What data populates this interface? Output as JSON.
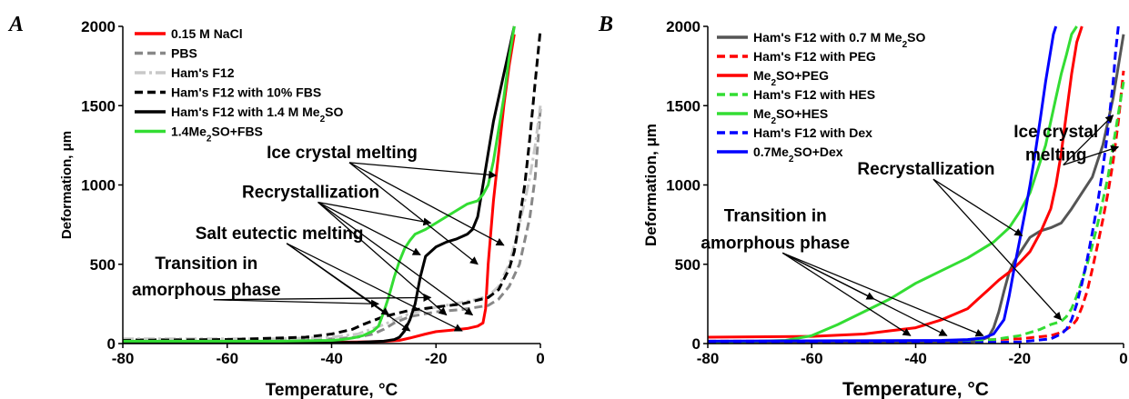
{
  "chart_data": [
    {
      "type": "line",
      "panel": "A",
      "xlabel": "Temperature, °C",
      "ylabel": "Deformation, μm",
      "xlim": [
        -80,
        0
      ],
      "ylim": [
        0,
        2000
      ],
      "xticks": [
        -80,
        -60,
        -40,
        -20,
        0
      ],
      "yticks": [
        0,
        500,
        1000,
        1500,
        2000
      ],
      "legend_position": "top-left",
      "series": [
        {
          "name": "0.15 M NaCl",
          "color": "#ff0000",
          "dash": "solid",
          "x": [
            -80,
            -40,
            -35,
            -30,
            -27,
            -25,
            -22,
            -20,
            -17,
            -14,
            -12,
            -11,
            -10.5,
            -10,
            -9,
            -8,
            -7,
            -6,
            -5
          ],
          "y": [
            8,
            8,
            10,
            14,
            20,
            35,
            60,
            75,
            85,
            95,
            110,
            130,
            220,
            500,
            900,
            1200,
            1500,
            1750,
            1950
          ]
        },
        {
          "name": "PBS",
          "color": "#888888",
          "dash": "dash",
          "x": [
            -80,
            -50,
            -40,
            -35,
            -32,
            -30,
            -28,
            -25,
            -20,
            -15,
            -10,
            -8,
            -6,
            -4,
            -3,
            -2,
            -1,
            0
          ],
          "y": [
            25,
            25,
            30,
            40,
            60,
            90,
            130,
            170,
            200,
            215,
            240,
            280,
            360,
            500,
            650,
            800,
            1050,
            1480
          ]
        },
        {
          "name": "Ham's F12",
          "color": "#c8c8c8",
          "dash": "dashdot",
          "x": [
            -80,
            -50,
            -40,
            -35,
            -30,
            -25,
            -20,
            -15,
            -12,
            -10,
            -8,
            -6,
            -5,
            -4,
            -3,
            -2,
            -1,
            0
          ],
          "y": [
            30,
            30,
            40,
            60,
            120,
            190,
            230,
            260,
            280,
            300,
            360,
            500,
            620,
            750,
            900,
            1050,
            1250,
            1500
          ]
        },
        {
          "name": "Ham's F12 with 10% FBS",
          "color": "#000000",
          "dash": "dash",
          "x": [
            -80,
            -60,
            -45,
            -40,
            -36,
            -34,
            -30,
            -25,
            -20,
            -15,
            -10,
            -8,
            -6,
            -5,
            -4,
            -3,
            -2,
            -1,
            0
          ],
          "y": [
            20,
            25,
            40,
            60,
            90,
            120,
            170,
            210,
            230,
            250,
            290,
            340,
            470,
            580,
            780,
            1000,
            1300,
            1650,
            1980
          ]
        },
        {
          "name": "Ham's F12 with 1.4 M Me₂SO",
          "color": "#000000",
          "dash": "solid",
          "x": [
            -80,
            -40,
            -35,
            -30,
            -28,
            -27,
            -26,
            -25,
            -24,
            -23,
            -22,
            -20,
            -18,
            -16,
            -14,
            -13,
            -12,
            -11,
            -10,
            -9,
            -8,
            -7,
            -6,
            -5
          ],
          "y": [
            5,
            5,
            8,
            15,
            25,
            40,
            80,
            150,
            250,
            420,
            550,
            610,
            640,
            660,
            690,
            720,
            800,
            1000,
            1200,
            1400,
            1550,
            1700,
            1850,
            2000
          ]
        },
        {
          "name": "1.4Me₂SO+FBS",
          "color": "#33dd33",
          "dash": "solid",
          "x": [
            -80,
            -50,
            -40,
            -38,
            -36,
            -34,
            -32,
            -31,
            -30,
            -29,
            -28,
            -27,
            -26,
            -25,
            -24,
            -22,
            -20,
            -18,
            -16,
            -14,
            -12,
            -11,
            -10,
            -9,
            -8,
            -7,
            -6,
            -5
          ],
          "y": [
            15,
            15,
            20,
            25,
            35,
            50,
            80,
            110,
            200,
            300,
            420,
            520,
            600,
            650,
            690,
            720,
            760,
            800,
            840,
            880,
            900,
            940,
            1000,
            1150,
            1350,
            1550,
            1800,
            2000
          ]
        }
      ],
      "annotations": [
        "Ice crystal melting",
        "Recrystallization",
        "Salt eutectic melting",
        "Transition in",
        "amorphous phase"
      ]
    },
    {
      "type": "line",
      "panel": "B",
      "xlabel": "Temperature, °C",
      "ylabel": "Deformation, μm",
      "xlim": [
        -80,
        0
      ],
      "ylim": [
        0,
        2000
      ],
      "xticks": [
        -80,
        -60,
        -40,
        -20,
        0
      ],
      "yticks": [
        0,
        500,
        1000,
        1500,
        2000
      ],
      "legend_position": "top-left",
      "series": [
        {
          "name": "Ham's F12 with 0.7 M Me₂SO",
          "color": "#555555",
          "dash": "solid",
          "x": [
            -80,
            -30,
            -28,
            -26,
            -25,
            -24,
            -23,
            -22,
            -21,
            -20,
            -19,
            -18,
            -16,
            -14,
            -12,
            -10,
            -8,
            -6,
            -5,
            -4,
            -3,
            -2,
            -1,
            0
          ],
          "y": [
            10,
            10,
            15,
            40,
            100,
            200,
            330,
            450,
            520,
            570,
            620,
            670,
            710,
            730,
            760,
            850,
            950,
            1050,
            1150,
            1250,
            1400,
            1550,
            1750,
            1950
          ]
        },
        {
          "name": "Ham's F12 with PEG",
          "color": "#ff0000",
          "dash": "dash",
          "x": [
            -80,
            -40,
            -30,
            -20,
            -14,
            -12,
            -10,
            -9,
            -8,
            -7,
            -6,
            -5,
            -4,
            -3,
            -2,
            -1,
            0
          ],
          "y": [
            15,
            15,
            20,
            30,
            50,
            70,
            110,
            150,
            230,
            330,
            470,
            620,
            780,
            950,
            1150,
            1400,
            1720
          ]
        },
        {
          "name": "Me₂SO+PEG",
          "color": "#ff0000",
          "dash": "solid",
          "x": [
            -80,
            -60,
            -50,
            -45,
            -40,
            -35,
            -30,
            -28,
            -26,
            -24,
            -22,
            -20,
            -18,
            -16,
            -14,
            -13,
            -12,
            -11,
            -10,
            -9,
            -8
          ],
          "y": [
            40,
            45,
            60,
            80,
            100,
            150,
            220,
            280,
            340,
            400,
            450,
            510,
            580,
            700,
            850,
            1000,
            1200,
            1450,
            1700,
            1900,
            2000
          ]
        },
        {
          "name": "Ham's F12 with HES",
          "color": "#33dd33",
          "dash": "dash",
          "x": [
            -80,
            -40,
            -30,
            -25,
            -20,
            -16,
            -14,
            -12,
            -11,
            -10,
            -9,
            -8,
            -7,
            -6,
            -5,
            -4,
            -3,
            -2,
            -1,
            0
          ],
          "y": [
            10,
            10,
            15,
            25,
            50,
            90,
            120,
            140,
            170,
            220,
            300,
            400,
            500,
            620,
            750,
            900,
            1050,
            1250,
            1450,
            1650
          ]
        },
        {
          "name": "Me₂SO+HES",
          "color": "#33dd33",
          "dash": "solid",
          "x": [
            -80,
            -70,
            -65,
            -60,
            -55,
            -50,
            -45,
            -40,
            -35,
            -30,
            -25,
            -22,
            -20,
            -18,
            -17,
            -16,
            -15,
            -14,
            -13,
            -12,
            -11,
            -10,
            -9
          ],
          "y": [
            10,
            15,
            20,
            50,
            120,
            200,
            280,
            380,
            460,
            540,
            640,
            730,
            830,
            950,
            1050,
            1150,
            1250,
            1400,
            1550,
            1700,
            1820,
            1950,
            2000
          ]
        },
        {
          "name": "Ham's F12 with Dex",
          "color": "#0000ff",
          "dash": "dash",
          "x": [
            -80,
            -30,
            -20,
            -14,
            -12,
            -11,
            -10,
            -9,
            -8,
            -7,
            -6,
            -5,
            -4,
            -3,
            -2.5,
            -2,
            -1.5,
            -1
          ],
          "y": [
            5,
            5,
            10,
            30,
            60,
            90,
            150,
            250,
            380,
            530,
            700,
            880,
            1100,
            1350,
            1500,
            1650,
            1850,
            2000
          ]
        },
        {
          "name": "0.7Me₂SO+Dex",
          "color": "#0000ff",
          "dash": "solid",
          "x": [
            -80,
            -35,
            -30,
            -27,
            -25,
            -23,
            -22,
            -21,
            -20,
            -19,
            -18,
            -17,
            -16,
            -15,
            -14,
            -13.5,
            -13
          ],
          "y": [
            15,
            20,
            25,
            35,
            60,
            150,
            300,
            480,
            650,
            820,
            1000,
            1200,
            1420,
            1650,
            1850,
            1950,
            2000
          ]
        }
      ],
      "annotations": [
        "Ice crystal",
        "melting",
        "Recrystallization",
        "Transition in",
        "amorphous phase"
      ]
    }
  ],
  "panels": [
    {
      "letter": "A",
      "legend": [
        {
          "label": "0.15 M NaCl",
          "color": "#ff0000",
          "dash": "solid"
        },
        {
          "label": "PBS",
          "color": "#888888",
          "dash": "dash"
        },
        {
          "label": "Ham's F12",
          "color": "#c8c8c8",
          "dash": "dashdot"
        },
        {
          "label": "Ham's F12 with 10% FBS",
          "color": "#000000",
          "dash": "dash"
        },
        {
          "label": "Ham's F12 with 1.4 M Me₂SO",
          "color": "#000000",
          "dash": "solid"
        },
        {
          "label": "1.4Me₂SO+FBS",
          "color": "#33dd33",
          "dash": "solid"
        }
      ],
      "annotations": [
        {
          "text": "Ice crystal melting",
          "tx": -38,
          "ty": 1170,
          "targets": [
            [
              -8.5,
              1060
            ],
            [
              -12,
              500
            ],
            [
              -7,
              620
            ]
          ]
        },
        {
          "text": "Recrystallization",
          "tx": -44,
          "ty": 920,
          "targets": [
            [
              -21,
              760
            ],
            [
              -23,
              560
            ],
            [
              -18,
              180
            ],
            [
              -13,
              180
            ]
          ]
        },
        {
          "text": "Salt eutectic melting",
          "tx": -50,
          "ty": 660,
          "targets": [
            [
              -29,
              180
            ],
            [
              -25,
              80
            ],
            [
              -15,
              80
            ]
          ]
        },
        {
          "text": "Transition in",
          "tx": -64,
          "ty": 470,
          "targets": []
        },
        {
          "text": "amorphous phase",
          "tx": -64,
          "ty": 305,
          "targets": [
            [
              -31,
              250
            ],
            [
              -21,
              290
            ]
          ]
        }
      ]
    },
    {
      "letter": "B",
      "legend": [
        {
          "label": "Ham's F12 with 0.7 M Me₂SO",
          "color": "#555555",
          "dash": "solid"
        },
        {
          "label": "Ham's F12 with PEG",
          "color": "#ff0000",
          "dash": "dash"
        },
        {
          "label": "Me₂SO+PEG",
          "color": "#ff0000",
          "dash": "solid"
        },
        {
          "label": "Ham's F12 with HES",
          "color": "#33dd33",
          "dash": "dash"
        },
        {
          "label": "Me₂SO+HES",
          "color": "#33dd33",
          "dash": "solid"
        },
        {
          "label": "Ham's F12 with Dex",
          "color": "#0000ff",
          "dash": "dash"
        },
        {
          "label": "0.7Me₂SO+Dex",
          "color": "#0000ff",
          "dash": "solid"
        }
      ],
      "annotations": [
        {
          "text": "Ice crystal",
          "tx": -13,
          "ty": 1300,
          "targets": []
        },
        {
          "text": "melting",
          "tx": -13,
          "ty": 1155,
          "targets": [
            [
              -1,
              1240
            ],
            [
              -2,
              1440
            ]
          ]
        },
        {
          "text": "Recrystallization",
          "tx": -38,
          "ty": 1065,
          "targets": [
            [
              -12,
              150
            ],
            [
              -19.5,
              680
            ]
          ]
        },
        {
          "text": "Transition in",
          "tx": -67,
          "ty": 770,
          "targets": []
        },
        {
          "text": "amorphous phase",
          "tx": -67,
          "ty": 600,
          "targets": [
            [
              -48,
              280
            ],
            [
              -41,
              50
            ],
            [
              -34,
              50
            ],
            [
              -27,
              50
            ]
          ]
        }
      ]
    }
  ]
}
